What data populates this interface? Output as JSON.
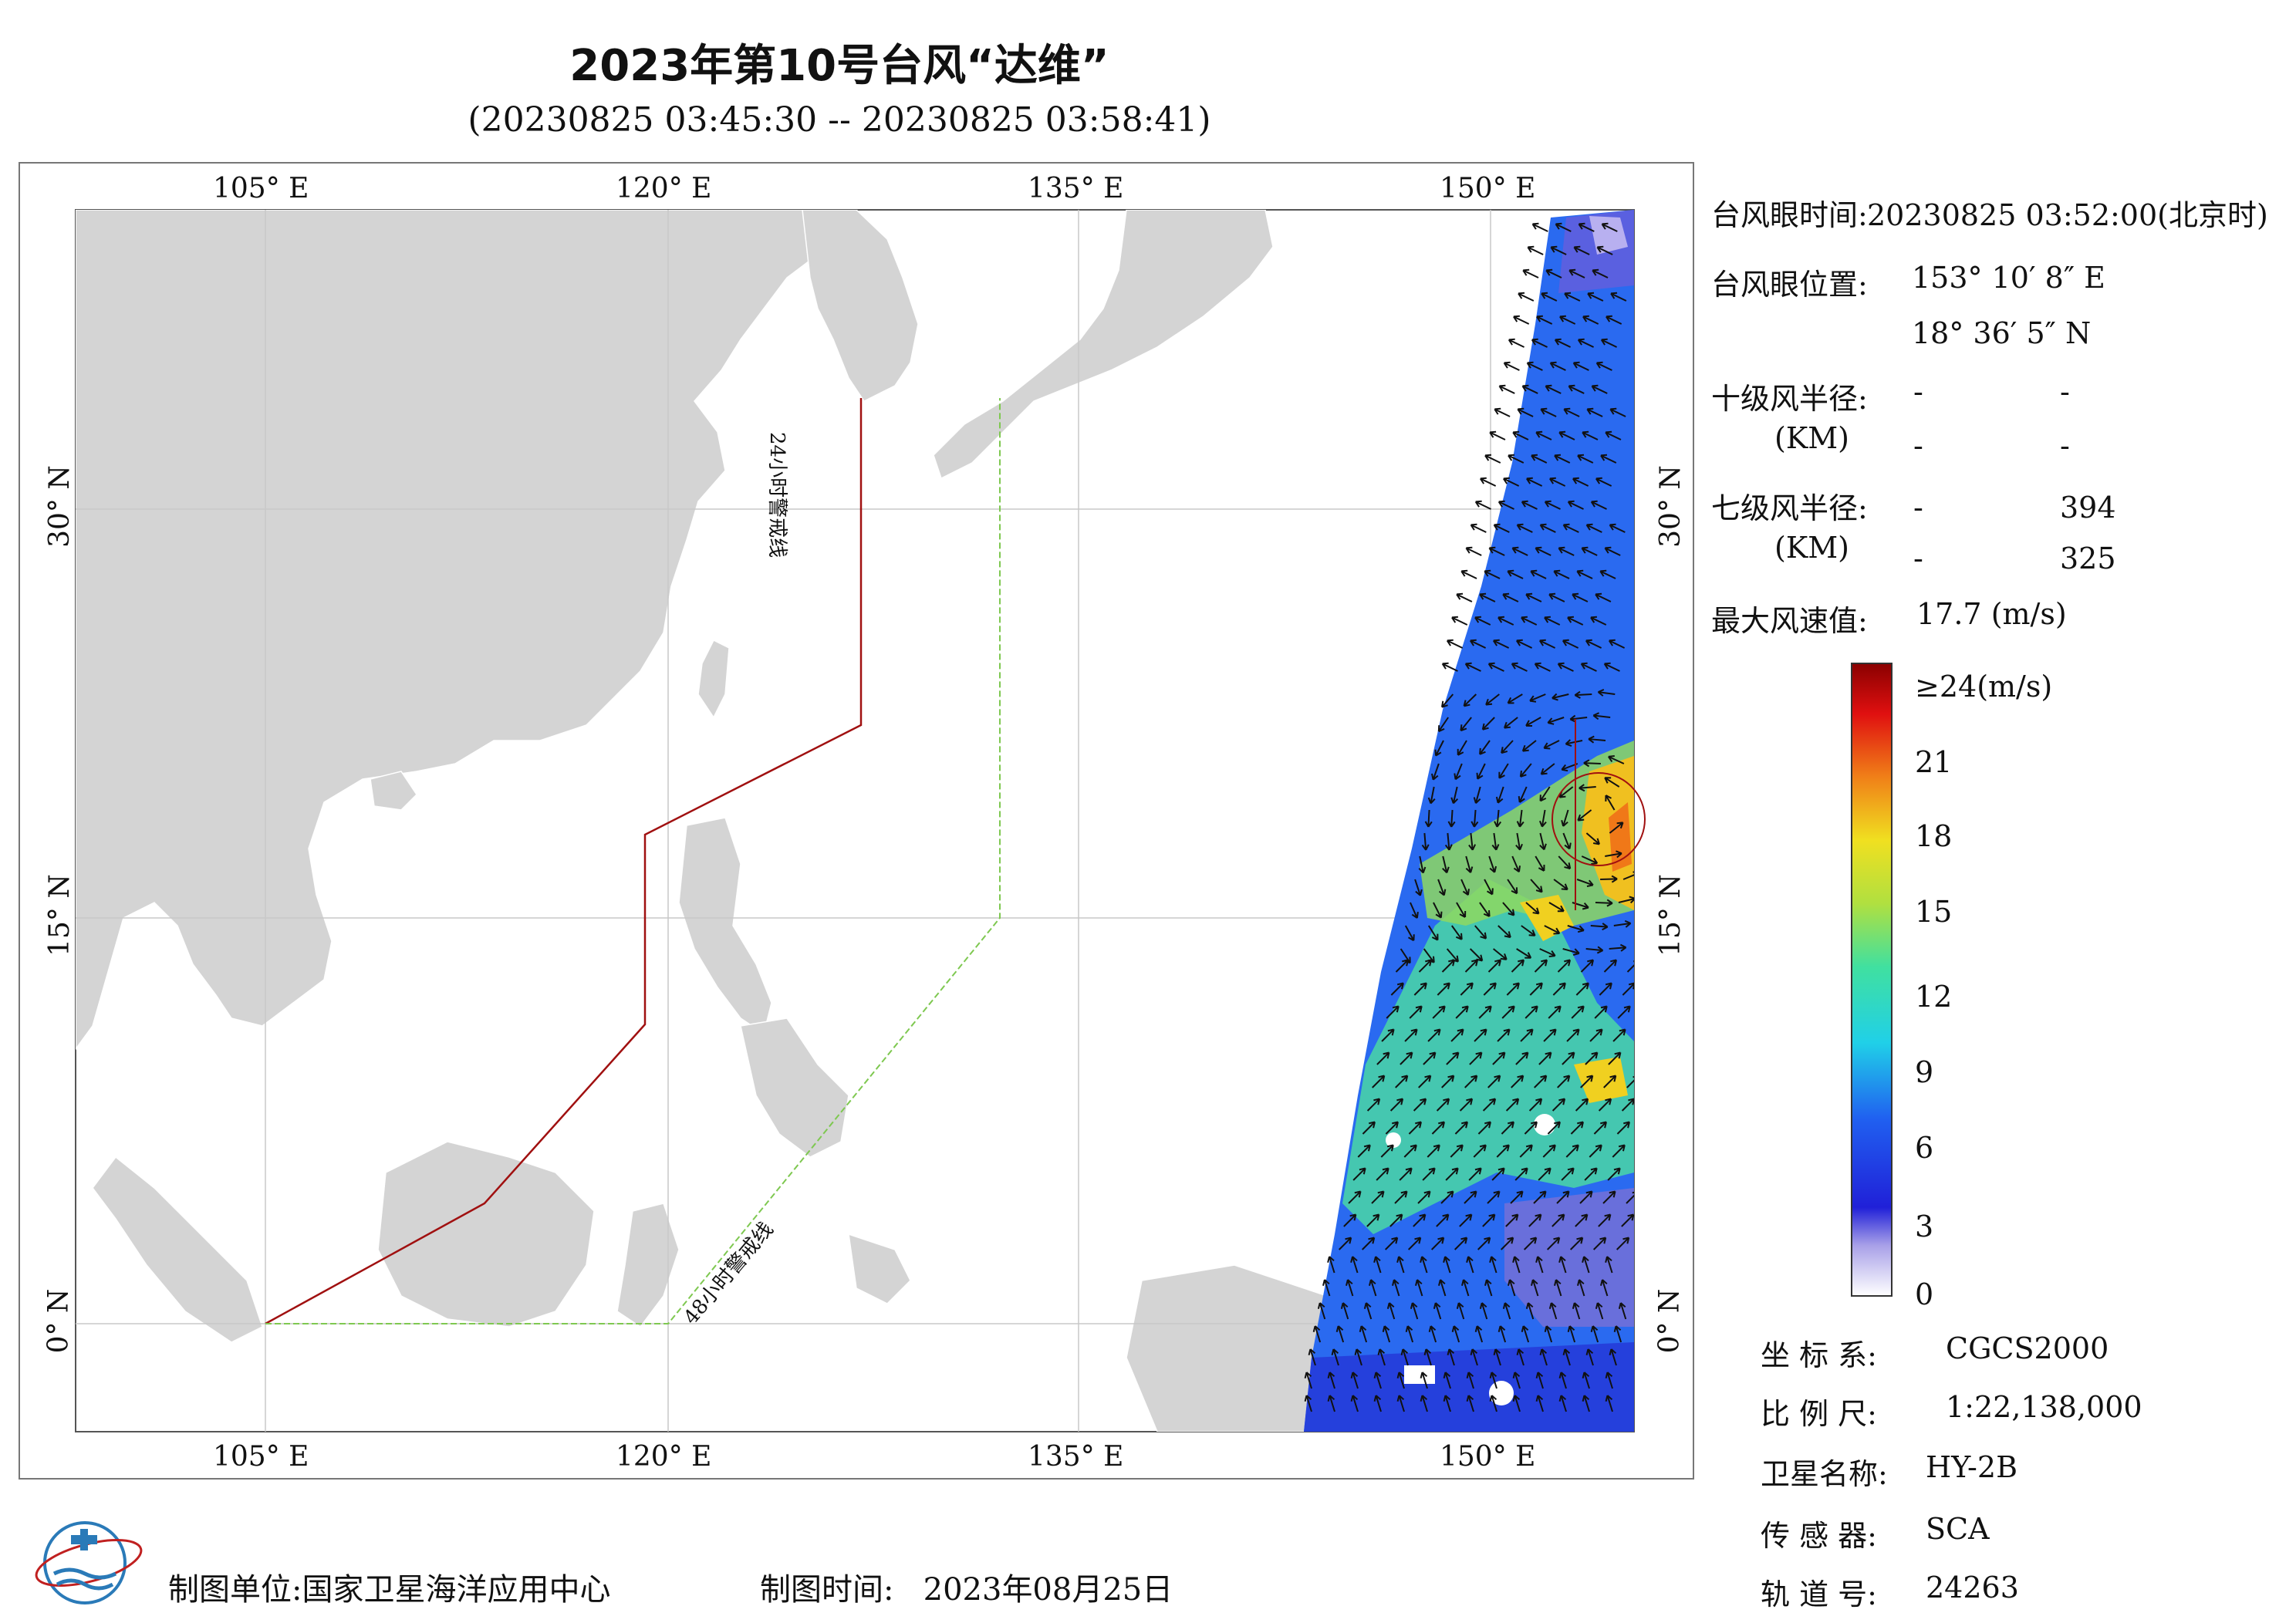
{
  "header": {
    "title": "2023年第10号台风“达维”",
    "subtitle": "(20230825 03:45:30 -- 20230825 03:58:41)"
  },
  "map": {
    "lon_labels": [
      "105° E",
      "120° E",
      "135° E",
      "150° E"
    ],
    "lat_labels": [
      "30° N",
      "15° N",
      "0° N"
    ],
    "warning_24h": "24小时警戒线",
    "warning_48h": "48小时警戒线",
    "colors": {
      "land": "#d4d4d4",
      "line24": "#a01010",
      "line48": "#7ec850"
    }
  },
  "info": {
    "eye_time_label": "台风眼时间:",
    "eye_time_value": "20230825 03:52:00(北京时)",
    "eye_pos_label": "台风眼位置:",
    "eye_lon": "153° 10′ 8″ E",
    "eye_lat": "18° 36′ 5″ N",
    "r10_label": "十级风半径:",
    "r10_unit": "(KM)",
    "r10_values": [
      "-",
      "-",
      "-",
      "-"
    ],
    "r7_label": "七级风半径:",
    "r7_unit": "(KM)",
    "r7_values": [
      "-",
      "394",
      "-",
      "325"
    ],
    "max_label": "最大风速值:",
    "max_value": "17.7 (m/s)"
  },
  "colorbar": {
    "labels": [
      "≥24(m/s)",
      "21",
      "18",
      "15",
      "12",
      "9",
      "6",
      "3",
      "0"
    ]
  },
  "meta": {
    "crs_label": "坐 标 系:",
    "crs_value": "CGCS2000",
    "scale_label": "比 例 尺:",
    "scale_value": "1:22,138,000",
    "sat_label": "卫星名称:",
    "sat_value": "HY-2B",
    "sensor_label": "传 感 器:",
    "sensor_value": "SCA",
    "orbit_label": "轨 道 号:",
    "orbit_value": "24263"
  },
  "footer": {
    "org_label": "制图单位:",
    "org_value": "国家卫星海洋应用中心",
    "date_label": "制图时间:",
    "date_value": "2023年08月25日"
  }
}
